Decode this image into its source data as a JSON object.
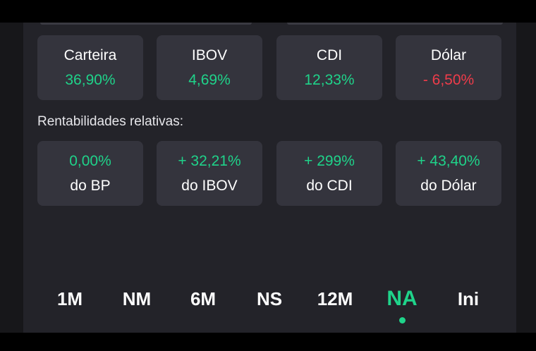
{
  "colors": {
    "positive": "#1fd38a",
    "negative": "#ef3c4a",
    "card_bg": "#34343d",
    "panel_bg": "#232329"
  },
  "summary": [
    {
      "label": "Carteira",
      "value": "36,90%",
      "status": "positive"
    },
    {
      "label": "IBOV",
      "value": "4,69%",
      "status": "positive"
    },
    {
      "label": "CDI",
      "value": "12,33%",
      "status": "positive"
    },
    {
      "label": "Dólar",
      "value": "- 6,50%",
      "status": "negative"
    }
  ],
  "relative": {
    "heading": "Rentabilidades relativas:",
    "items": [
      {
        "value": "0,00%",
        "label": "do BP"
      },
      {
        "value": "+ 32,21%",
        "label": "do IBOV"
      },
      {
        "value": "+ 299%",
        "label": "do CDI"
      },
      {
        "value": "+ 43,40%",
        "label": "do Dólar"
      }
    ]
  },
  "periods": {
    "options": [
      "1M",
      "NM",
      "6M",
      "NS",
      "12M",
      "NA",
      "Ini"
    ],
    "selected": "NA"
  }
}
